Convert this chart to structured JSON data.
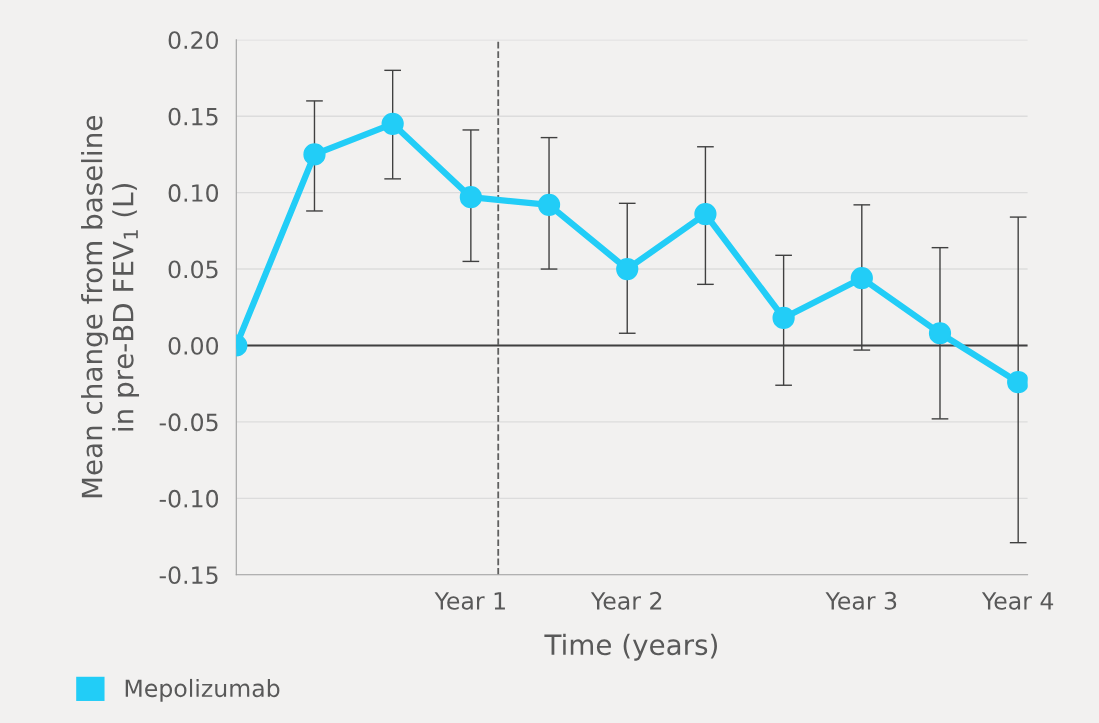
{
  "chart_data": {
    "type": "line",
    "xlabel": "Time (years)",
    "ylabel": "Mean change from baseline\nin pre-BD FEV$_{1}$ (L)",
    "categories": [
      null,
      null,
      null,
      "Year 1",
      null,
      "Year 2",
      null,
      null,
      "Year 3",
      null,
      "Year 4"
    ],
    "series": [
      {
        "name": "Mepolizumab",
        "color": "#22cdf7",
        "values": [
          0.0,
          0.125,
          0.145,
          0.097,
          0.092,
          0.05,
          0.086,
          0.018,
          0.044,
          0.008,
          -0.024
        ],
        "errors": [
          null,
          [
            0.088,
            0.16
          ],
          [
            0.109,
            0.18
          ],
          [
            0.055,
            0.141
          ],
          [
            0.05,
            0.136
          ],
          [
            0.008,
            0.093
          ],
          [
            0.04,
            0.13
          ],
          [
            -0.026,
            0.059
          ],
          [
            -0.003,
            0.092
          ],
          [
            -0.048,
            0.064
          ],
          [
            -0.129,
            0.084
          ]
        ]
      }
    ],
    "ylim": [
      -0.15,
      0.2
    ],
    "yticks": [
      {
        "value": -0.15,
        "label": "-0.15"
      },
      {
        "value": -0.1,
        "label": "-0.10"
      },
      {
        "value": -0.05,
        "label": "-0.05"
      },
      {
        "value": 0,
        "label": "0.00"
      },
      {
        "value": 0.05,
        "label": "0.05"
      },
      {
        "value": 0.1,
        "label": "0.10"
      },
      {
        "value": 0.15,
        "label": "0.15"
      },
      {
        "value": 0.2,
        "label": "0.20"
      }
    ],
    "ref_lines": [
      {
        "axis": "y",
        "value": 0,
        "color": "#404040",
        "line_style": "solid"
      }
    ],
    "grid": "y",
    "legend": "bottom left",
    "marker": "circle",
    "line_style": "solid"
  }
}
